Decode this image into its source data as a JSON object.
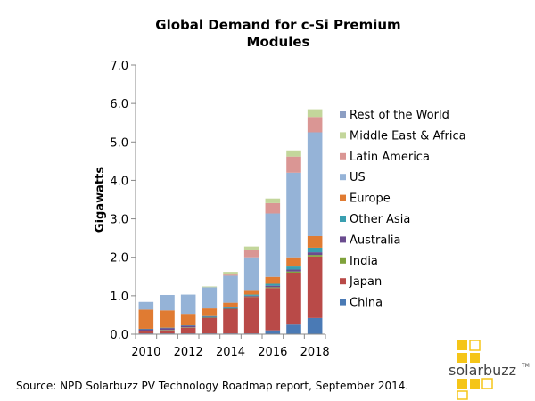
{
  "chart_data": {
    "type": "bar",
    "stacked": true,
    "title": "Global Demand for c-Si Premium Modules",
    "title_lines": [
      "Global Demand for c-Si Premium",
      "Modules"
    ],
    "ylabel": "Gigawatts",
    "xlabel": "",
    "ylim": [
      0,
      7
    ],
    "yticks": [
      "0.0",
      "1.0",
      "2.0",
      "3.0",
      "4.0",
      "5.0",
      "6.0",
      "7.0"
    ],
    "xtick_labels": [
      "2010",
      "2012",
      "2014",
      "2016",
      "2018"
    ],
    "categories": [
      "2010",
      "2011",
      "2012",
      "2013",
      "2014",
      "2015",
      "2016",
      "2017",
      "2018"
    ],
    "legend_position": "right",
    "series": [
      {
        "name": "China",
        "color": "#4a7ab5",
        "values": [
          0.02,
          0.02,
          0.02,
          0.02,
          0.02,
          0.02,
          0.1,
          0.25,
          0.42
        ]
      },
      {
        "name": "Japan",
        "color": "#b94a48",
        "values": [
          0.05,
          0.08,
          0.15,
          0.4,
          0.63,
          0.95,
          1.1,
          1.35,
          1.6
        ]
      },
      {
        "name": "India",
        "color": "#7fa23b",
        "values": [
          0.01,
          0.01,
          0.01,
          0.01,
          0.01,
          0.01,
          0.02,
          0.03,
          0.04
        ]
      },
      {
        "name": "Australia",
        "color": "#6a4c8f",
        "values": [
          0.05,
          0.05,
          0.04,
          0.02,
          0.02,
          0.02,
          0.04,
          0.05,
          0.07
        ]
      },
      {
        "name": "Other Asia",
        "color": "#3a9fb0",
        "values": [
          0.01,
          0.01,
          0.01,
          0.02,
          0.02,
          0.03,
          0.05,
          0.08,
          0.12
        ]
      },
      {
        "name": "Europe",
        "color": "#e07b32",
        "values": [
          0.5,
          0.45,
          0.3,
          0.2,
          0.12,
          0.12,
          0.18,
          0.24,
          0.3
        ]
      },
      {
        "name": "US",
        "color": "#95b3d7",
        "values": [
          0.2,
          0.4,
          0.5,
          0.55,
          0.7,
          0.85,
          1.65,
          2.2,
          2.7
        ]
      },
      {
        "name": "Latin America",
        "color": "#da9694",
        "values": [
          0.0,
          0.0,
          0.0,
          0.0,
          0.03,
          0.18,
          0.27,
          0.42,
          0.4
        ]
      },
      {
        "name": "Middle East & Africa",
        "color": "#c3d69b",
        "values": [
          0.0,
          0.0,
          0.0,
          0.02,
          0.07,
          0.1,
          0.12,
          0.16,
          0.2
        ]
      },
      {
        "name": "Rest of the World",
        "color": "#8c9ec3",
        "values": [
          0.0,
          0.0,
          0.0,
          0.0,
          0.0,
          0.0,
          0.0,
          0.0,
          0.0
        ]
      }
    ],
    "legend_order": [
      "Rest of the World",
      "Middle East & Africa",
      "Latin America",
      "US",
      "Europe",
      "Other Asia",
      "Australia",
      "India",
      "Japan",
      "China"
    ]
  },
  "source_note": "Source: NPD Solarbuzz PV Technology Roadmap report, September 2014.",
  "logo": {
    "text": "solarbuzz",
    "trademark": "TM",
    "color": "#f5c518"
  }
}
